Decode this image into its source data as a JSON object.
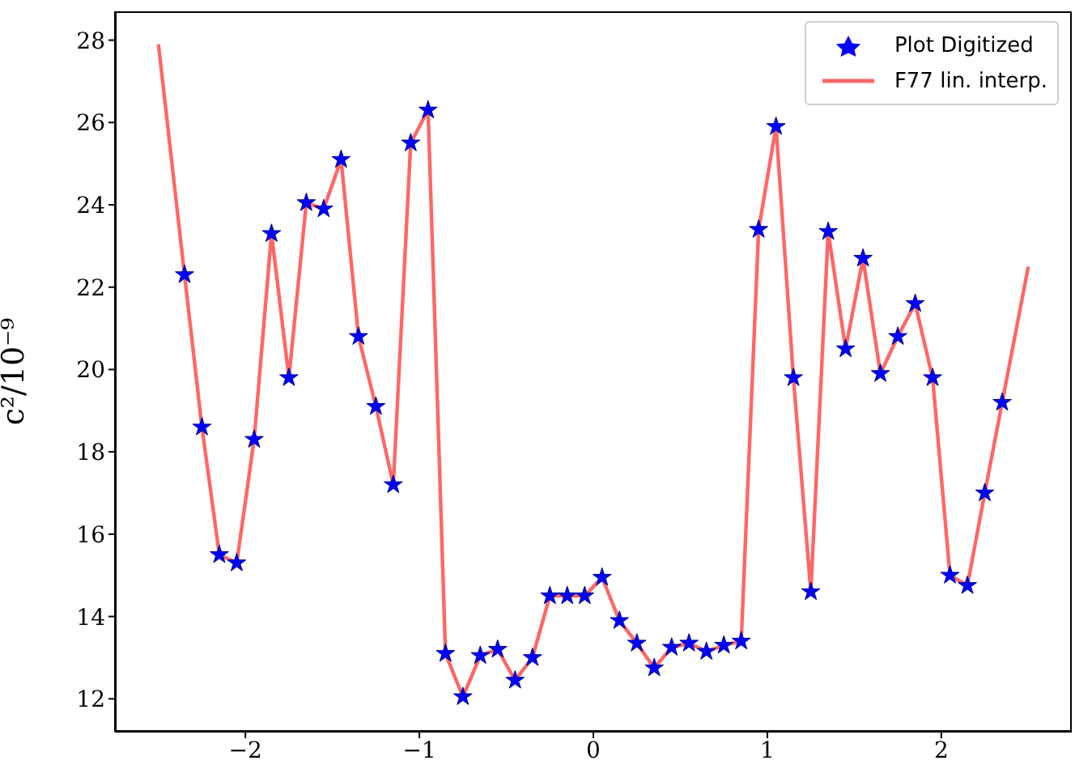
{
  "chart_data": {
    "type": "line",
    "ylabel": "c²/10⁻⁹",
    "xlim": [
      -2.75,
      2.75
    ],
    "xticks": [
      -2,
      -1,
      0,
      1,
      2
    ],
    "ylim": [
      11.2,
      28.7
    ],
    "yticks": [
      12,
      14,
      16,
      18,
      20,
      22,
      24,
      26,
      28
    ],
    "grid": false,
    "legend": "top right",
    "line_style": "solid",
    "series": [
      {
        "name": "Plot Digitized",
        "type": "scatter",
        "marker": "star",
        "color": "#0000ff",
        "x": [
          -2.35,
          -2.25,
          -2.15,
          -2.05,
          -1.95,
          -1.85,
          -1.75,
          -1.65,
          -1.55,
          -1.45,
          -1.35,
          -1.25,
          -1.15,
          -1.05,
          -0.95,
          -0.85,
          -0.75,
          -0.65,
          -0.55,
          -0.45,
          -0.35,
          -0.25,
          -0.15,
          -0.05,
          0.05,
          0.15,
          0.25,
          0.35,
          0.45,
          0.55,
          0.65,
          0.75,
          0.85,
          0.95,
          1.05,
          1.15,
          1.25,
          1.35,
          1.45,
          1.55,
          1.65,
          1.75,
          1.85,
          1.95,
          2.05,
          2.15,
          2.25,
          2.35
        ],
        "values": [
          22.3,
          18.6,
          15.5,
          15.3,
          18.3,
          23.3,
          19.8,
          24.05,
          23.9,
          25.1,
          20.8,
          19.1,
          17.2,
          25.5,
          26.3,
          13.1,
          12.05,
          13.05,
          13.2,
          12.45,
          13.0,
          14.5,
          14.5,
          14.5,
          14.95,
          13.9,
          13.35,
          12.75,
          13.25,
          13.35,
          13.15,
          13.3,
          13.4,
          23.4,
          25.9,
          19.8,
          14.6,
          23.35,
          20.5,
          22.7,
          19.9,
          20.8,
          21.6,
          19.8,
          15.0,
          14.75,
          17.0,
          19.2
        ]
      },
      {
        "name": "F77 lin. interp.",
        "type": "line",
        "marker": "none",
        "color": "#ff6666",
        "x": [
          -2.5,
          -2.35,
          -2.25,
          -2.15,
          -2.05,
          -1.95,
          -1.85,
          -1.75,
          -1.65,
          -1.55,
          -1.45,
          -1.35,
          -1.25,
          -1.15,
          -1.05,
          -0.95,
          -0.85,
          -0.75,
          -0.65,
          -0.55,
          -0.45,
          -0.35,
          -0.25,
          -0.15,
          -0.05,
          0.05,
          0.15,
          0.25,
          0.35,
          0.45,
          0.55,
          0.65,
          0.75,
          0.85,
          0.95,
          1.05,
          1.15,
          1.25,
          1.35,
          1.45,
          1.55,
          1.65,
          1.75,
          1.85,
          1.95,
          2.05,
          2.15,
          2.25,
          2.35,
          2.5
        ],
        "values": [
          27.9,
          22.3,
          18.6,
          15.5,
          15.3,
          18.3,
          23.3,
          19.8,
          24.05,
          23.9,
          25.1,
          20.8,
          19.1,
          17.2,
          25.5,
          26.3,
          13.1,
          12.05,
          13.05,
          13.2,
          12.45,
          13.0,
          14.5,
          14.5,
          14.5,
          14.95,
          13.9,
          13.35,
          12.75,
          13.25,
          13.35,
          13.15,
          13.3,
          13.4,
          23.4,
          25.9,
          19.8,
          14.6,
          23.35,
          20.5,
          22.7,
          19.9,
          20.8,
          21.6,
          19.8,
          15.0,
          14.75,
          17.0,
          19.2,
          22.5
        ]
      }
    ]
  }
}
